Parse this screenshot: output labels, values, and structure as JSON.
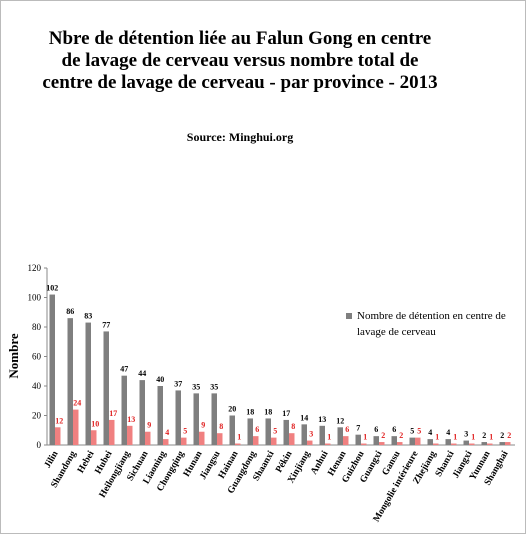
{
  "chart_data": {
    "type": "bar",
    "title": "Nbre de détention liée au Falun Gong en centre de lavage de cerveau versus nombre total de centre de lavage de cerveau - par province - 2013",
    "subtitle": "Source: Minghui.org",
    "y_label": "Nombre",
    "categories": [
      "Jilin",
      "Shandong",
      "Hebei",
      "Hubei",
      "Heilongjiang",
      "Sichuan",
      "Liaoning",
      "Chongqing",
      "Hunan",
      "Jiangsu",
      "Hainan",
      "Guangdong",
      "Shaanxi",
      "Pékin",
      "Xinjiang",
      "Anhui",
      "Henan",
      "Guizhou",
      "Guangxi",
      "Gansu",
      "Mongolie intérieure",
      "Zhejiang",
      "Shanxi",
      "Jiangxi",
      "Yunnan",
      "Shanghai"
    ],
    "series": [
      {
        "name": "Nombre de détention en centre de lavage de cerveau",
        "color": "#7f7f7f",
        "label_color": "#000000",
        "values": [
          102,
          86,
          83,
          77,
          47,
          44,
          40,
          37,
          35,
          35,
          20,
          18,
          18,
          17,
          14,
          13,
          12,
          7,
          6,
          6,
          5,
          4,
          4,
          3,
          2,
          2
        ]
      },
      {
        "color": "#f08080",
        "label_color": "#e02020",
        "values": [
          12,
          24,
          10,
          17,
          13,
          9,
          4,
          5,
          9,
          8,
          1,
          6,
          5,
          8,
          3,
          1,
          6,
          1,
          2,
          2,
          5,
          1,
          1,
          1,
          1,
          2
        ]
      }
    ],
    "ylim": [
      0,
      120
    ],
    "yticks": [
      0,
      20,
      40,
      60,
      80,
      100,
      120
    ],
    "grid": false,
    "legend": "right"
  }
}
